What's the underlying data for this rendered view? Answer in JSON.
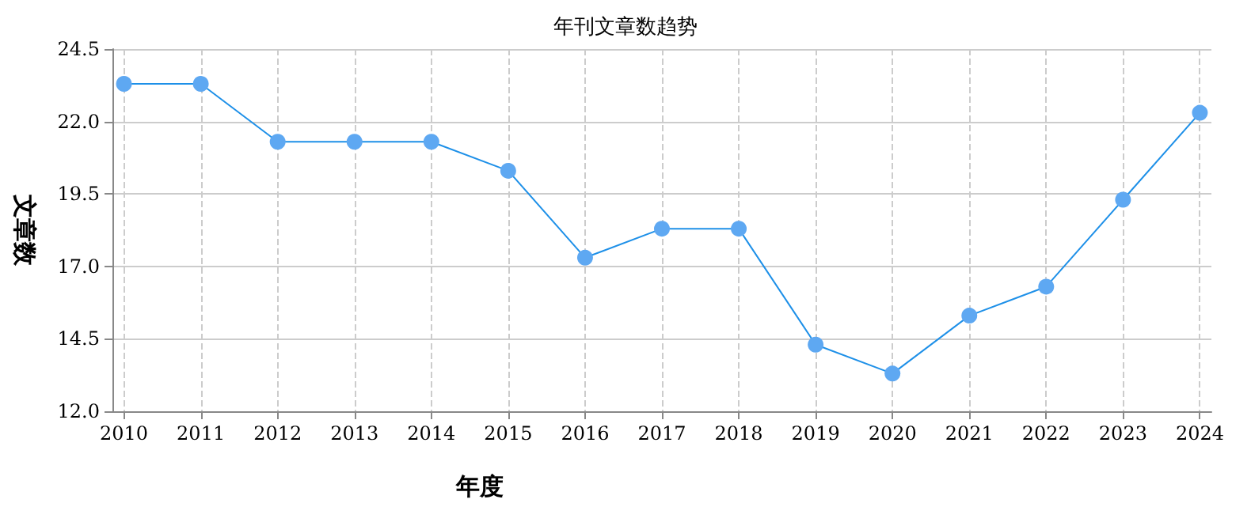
{
  "chart_data": {
    "type": "line",
    "title": "年刊文章数趋势",
    "xlabel": "年度",
    "ylabel": "文章数",
    "x": [
      2010,
      2011,
      2012,
      2013,
      2014,
      2015,
      2016,
      2017,
      2018,
      2019,
      2020,
      2021,
      2022,
      2023,
      2024
    ],
    "series": [
      {
        "color": "#5ea8f2",
        "values": [
          23.3,
          23.3,
          21.3,
          21.3,
          21.3,
          20.3,
          17.3,
          18.3,
          18.3,
          14.3,
          13.3,
          15.3,
          16.3,
          19.3,
          22.3
        ]
      }
    ],
    "xlim": [
      2009.85,
      2024.15
    ],
    "xticks": [
      2010,
      2011,
      2012,
      2013,
      2014,
      2015,
      2016,
      2017,
      2018,
      2019,
      2020,
      2021,
      2022,
      2023,
      2024
    ],
    "ylim": [
      12,
      24.5
    ],
    "yticks": [
      {
        "value": 12,
        "label": "12.0"
      },
      14.5,
      {
        "value": 17,
        "label": "17.0"
      },
      19.5,
      {
        "value": 22,
        "label": "22.0"
      },
      24.5
    ],
    "grid": true,
    "marker": "circle",
    "line_style": "solid"
  }
}
